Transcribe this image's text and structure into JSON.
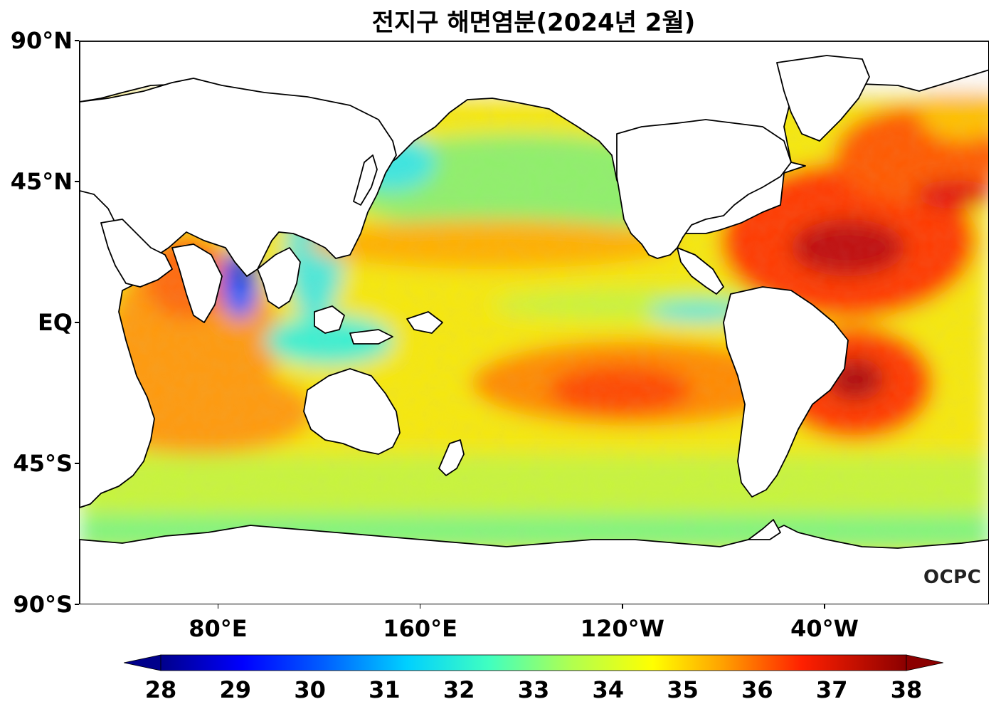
{
  "title": "전지구 해면염분(2024년 2월)",
  "watermark": "OCPC",
  "lat_labels": [
    {
      "text": "90°N",
      "lat": 90
    },
    {
      "text": "45°N",
      "lat": 45
    },
    {
      "text": "EQ",
      "lat": 0
    },
    {
      "text": "45°S",
      "lat": -45
    },
    {
      "text": "90°S",
      "lat": -90
    }
  ],
  "lon_labels": [
    {
      "text": "80°E",
      "lon": 80
    },
    {
      "text": "160°E",
      "lon": 160
    },
    {
      "text": "120°W",
      "lon": 240
    },
    {
      "text": "40°W",
      "lon": 320
    }
  ],
  "lon_range": [
    25,
    385
  ],
  "lat_range": [
    -90,
    90
  ],
  "colorbar": {
    "min": 28,
    "max": 38,
    "ticks": [
      "28",
      "29",
      "30",
      "31",
      "32",
      "33",
      "34",
      "35",
      "36",
      "37",
      "38"
    ],
    "colors": [
      "#00008b",
      "#0000ff",
      "#0080ff",
      "#00e5ff",
      "#7fffa0",
      "#ffff00",
      "#ffa500",
      "#ff4500",
      "#ff0000",
      "#8b0000"
    ],
    "extend": "both"
  },
  "colors": {
    "land": "#ffffff",
    "coastline": "#000000"
  }
}
